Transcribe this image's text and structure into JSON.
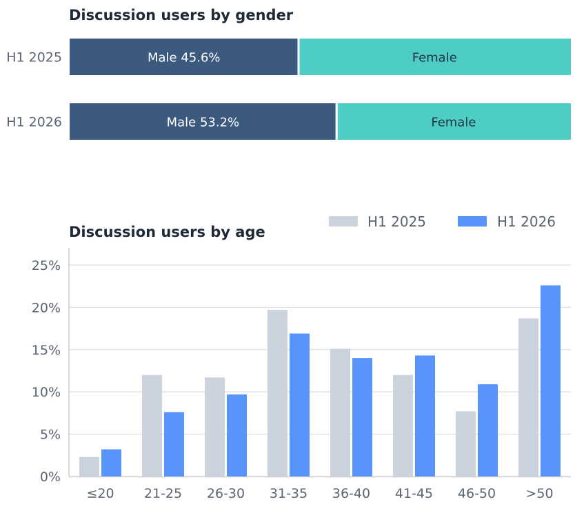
{
  "colors": {
    "male": "#3c5a80",
    "female": "#4ecdc4",
    "h1_2025": "#cbd3de",
    "h1_2026": "#5994fb",
    "grid": "#dcdfe4",
    "axis": "#c9ccd1",
    "text": "#5b6472",
    "title": "#1f2937"
  },
  "chart_data": [
    {
      "type": "bar",
      "orientation": "horizontal-stacked-100",
      "title": "Discussion users by gender",
      "categories": [
        "H1 2025",
        "H1 2026"
      ],
      "series": [
        {
          "name": "Male",
          "values": [
            45.6,
            53.2
          ]
        },
        {
          "name": "Female",
          "values": [
            54.4,
            46.8
          ]
        }
      ],
      "segment_labels": [
        [
          "Male 45.6%",
          "Female"
        ],
        [
          "Male 53.2%",
          "Female"
        ]
      ],
      "xlim": [
        0,
        100
      ]
    },
    {
      "type": "bar",
      "title": "Discussion users by age",
      "categories": [
        "≤20",
        "21-25",
        "26-30",
        "31-35",
        "36-40",
        "41-45",
        "46-50",
        ">50"
      ],
      "series": [
        {
          "name": "H1 2025",
          "values": [
            2.3,
            12.0,
            11.7,
            19.7,
            15.1,
            12.0,
            7.7,
            18.7
          ]
        },
        {
          "name": "H1 2026",
          "values": [
            3.2,
            7.6,
            9.7,
            16.9,
            14.0,
            14.3,
            10.9,
            22.6
          ]
        }
      ],
      "ylim": [
        0,
        25
      ],
      "yticks": [
        0,
        5,
        10,
        15,
        20,
        25
      ],
      "ytick_labels": [
        "0%",
        "5%",
        "10%",
        "15%",
        "20%",
        "25%"
      ],
      "grid": true,
      "legend": "top-right"
    }
  ]
}
